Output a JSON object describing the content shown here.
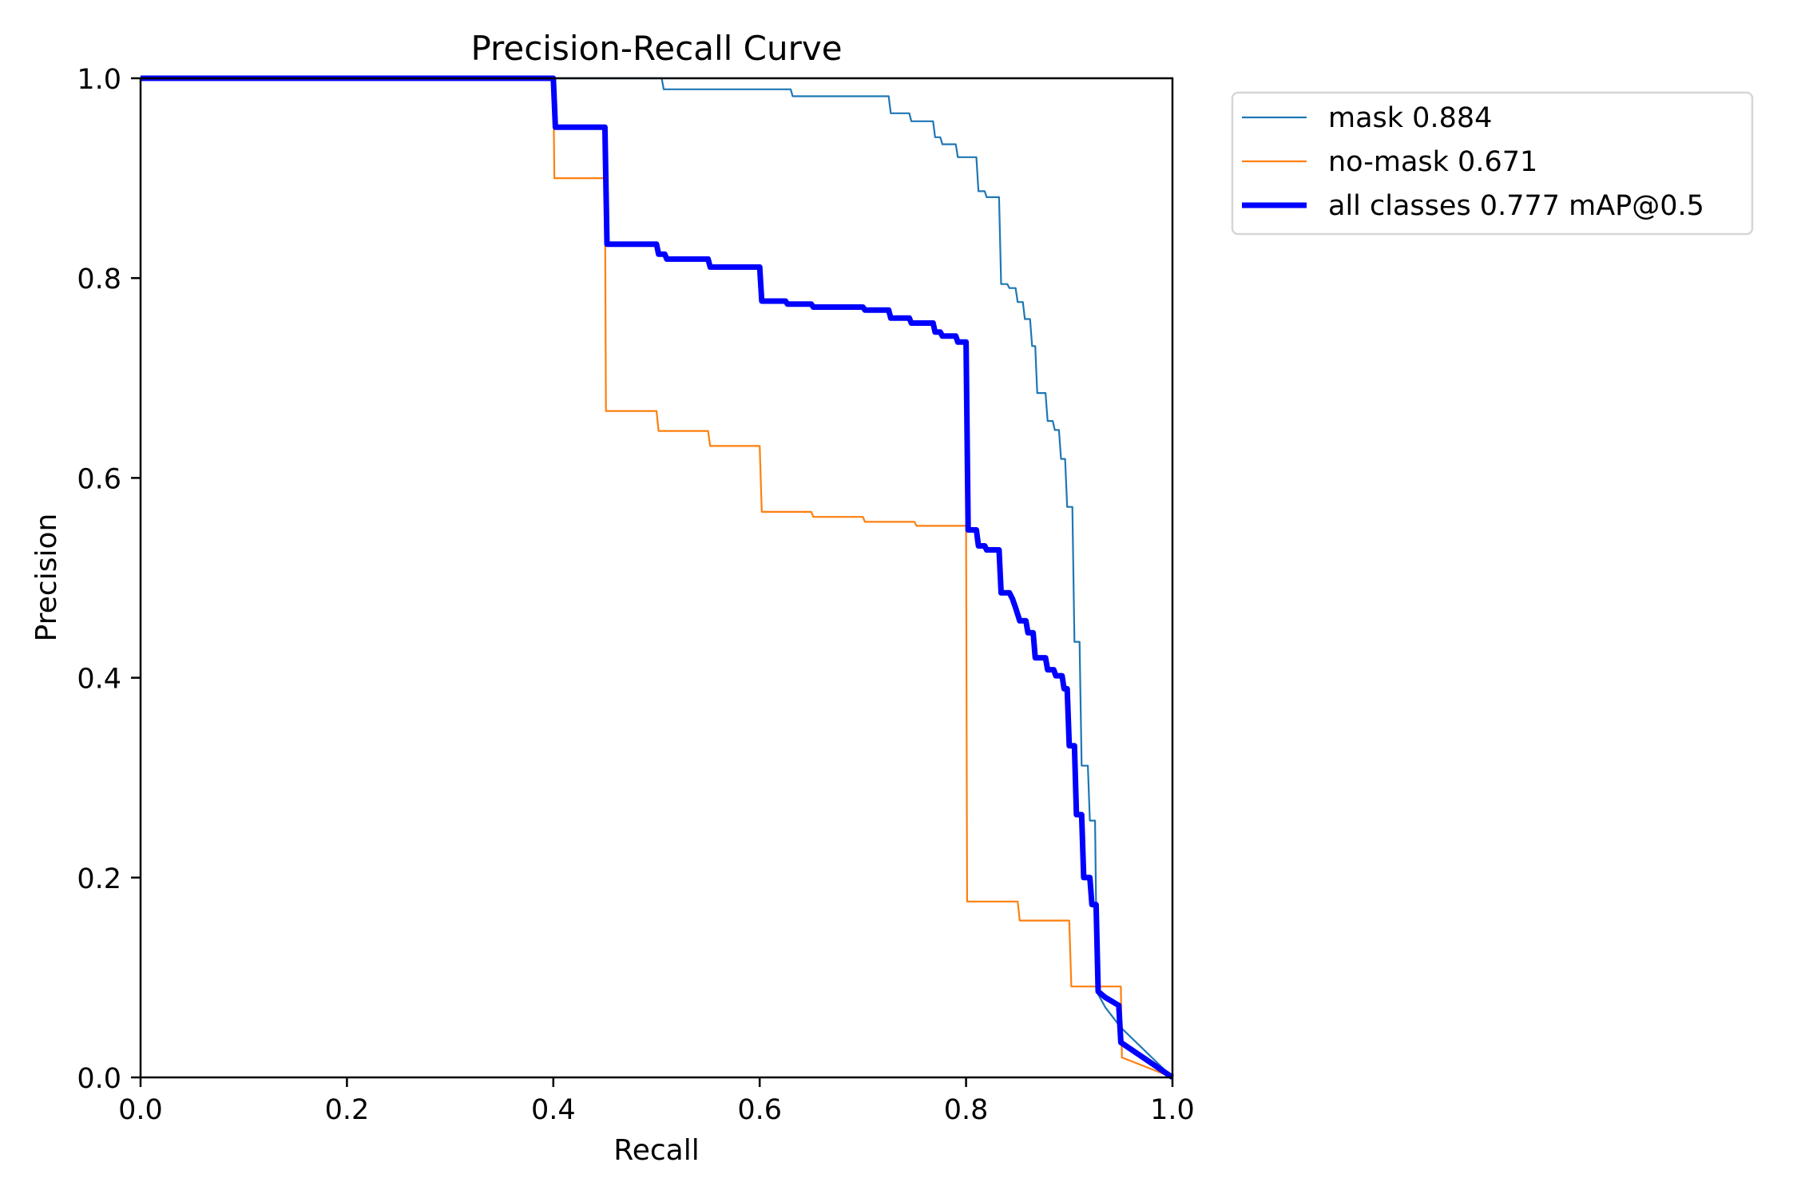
{
  "chart_data": {
    "type": "line",
    "title": "Precision-Recall Curve",
    "xlabel": "Recall",
    "ylabel": "Precision",
    "xlim": [
      0,
      1
    ],
    "ylim": [
      0,
      1
    ],
    "xticks": [
      "0.0",
      "0.2",
      "0.4",
      "0.6",
      "0.8",
      "1.0"
    ],
    "yticks": [
      "0.0",
      "0.2",
      "0.4",
      "0.6",
      "0.8",
      "1.0"
    ],
    "grid": false,
    "legend_placement": "outside-top-right",
    "series": [
      {
        "name": "mask 0.884",
        "color": "#1f77b4",
        "points": [
          [
            0,
            1
          ],
          [
            0.505,
            1
          ],
          [
            0.507,
            0.989
          ],
          [
            0.63,
            0.989
          ],
          [
            0.632,
            0.982
          ],
          [
            0.725,
            0.982
          ],
          [
            0.727,
            0.965
          ],
          [
            0.745,
            0.965
          ],
          [
            0.747,
            0.957
          ],
          [
            0.768,
            0.957
          ],
          [
            0.77,
            0.941
          ],
          [
            0.775,
            0.941
          ],
          [
            0.777,
            0.934
          ],
          [
            0.79,
            0.934
          ],
          [
            0.792,
            0.921
          ],
          [
            0.81,
            0.921
          ],
          [
            0.812,
            0.887
          ],
          [
            0.818,
            0.887
          ],
          [
            0.82,
            0.881
          ],
          [
            0.832,
            0.881
          ],
          [
            0.834,
            0.794
          ],
          [
            0.84,
            0.794
          ],
          [
            0.842,
            0.79
          ],
          [
            0.848,
            0.79
          ],
          [
            0.85,
            0.776
          ],
          [
            0.855,
            0.776
          ],
          [
            0.857,
            0.759
          ],
          [
            0.862,
            0.759
          ],
          [
            0.864,
            0.732
          ],
          [
            0.867,
            0.732
          ],
          [
            0.869,
            0.685
          ],
          [
            0.877,
            0.685
          ],
          [
            0.879,
            0.657
          ],
          [
            0.884,
            0.657
          ],
          [
            0.886,
            0.648
          ],
          [
            0.89,
            0.648
          ],
          [
            0.892,
            0.619
          ],
          [
            0.896,
            0.619
          ],
          [
            0.898,
            0.571
          ],
          [
            0.903,
            0.571
          ],
          [
            0.905,
            0.436
          ],
          [
            0.91,
            0.436
          ],
          [
            0.912,
            0.312
          ],
          [
            0.918,
            0.312
          ],
          [
            0.92,
            0.257
          ],
          [
            0.925,
            0.257
          ],
          [
            0.927,
            0.085
          ],
          [
            0.935,
            0.07
          ],
          [
            0.95,
            0.05
          ],
          [
            1,
            0
          ]
        ]
      },
      {
        "name": "no-mask 0.671",
        "color": "#ff7f0e",
        "points": [
          [
            0,
            1
          ],
          [
            0.4,
            1
          ],
          [
            0.401,
            0.9
          ],
          [
            0.45,
            0.9
          ],
          [
            0.451,
            0.667
          ],
          [
            0.5,
            0.667
          ],
          [
            0.502,
            0.647
          ],
          [
            0.55,
            0.647
          ],
          [
            0.552,
            0.632
          ],
          [
            0.6,
            0.632
          ],
          [
            0.602,
            0.566
          ],
          [
            0.65,
            0.566
          ],
          [
            0.652,
            0.561
          ],
          [
            0.7,
            0.561
          ],
          [
            0.702,
            0.556
          ],
          [
            0.75,
            0.556
          ],
          [
            0.752,
            0.552
          ],
          [
            0.8,
            0.552
          ],
          [
            0.801,
            0.176
          ],
          [
            0.85,
            0.176
          ],
          [
            0.852,
            0.157
          ],
          [
            0.9,
            0.157
          ],
          [
            0.902,
            0.091
          ],
          [
            0.95,
            0.091
          ],
          [
            0.951,
            0.02
          ],
          [
            1,
            0
          ]
        ]
      },
      {
        "name": "all classes 0.777 mAP@0.5",
        "color": "#0000ff",
        "points": [
          [
            0,
            1
          ],
          [
            0.4,
            1
          ],
          [
            0.402,
            0.951
          ],
          [
            0.45,
            0.951
          ],
          [
            0.452,
            0.834
          ],
          [
            0.5,
            0.834
          ],
          [
            0.502,
            0.824
          ],
          [
            0.508,
            0.824
          ],
          [
            0.51,
            0.819
          ],
          [
            0.55,
            0.819
          ],
          [
            0.552,
            0.811
          ],
          [
            0.6,
            0.811
          ],
          [
            0.602,
            0.777
          ],
          [
            0.625,
            0.777
          ],
          [
            0.627,
            0.774
          ],
          [
            0.65,
            0.774
          ],
          [
            0.652,
            0.771
          ],
          [
            0.7,
            0.771
          ],
          [
            0.702,
            0.768
          ],
          [
            0.725,
            0.768
          ],
          [
            0.727,
            0.76
          ],
          [
            0.745,
            0.76
          ],
          [
            0.747,
            0.755
          ],
          [
            0.768,
            0.755
          ],
          [
            0.77,
            0.746
          ],
          [
            0.775,
            0.746
          ],
          [
            0.777,
            0.742
          ],
          [
            0.79,
            0.742
          ],
          [
            0.792,
            0.736
          ],
          [
            0.8,
            0.736
          ],
          [
            0.802,
            0.548
          ],
          [
            0.81,
            0.548
          ],
          [
            0.812,
            0.532
          ],
          [
            0.818,
            0.532
          ],
          [
            0.82,
            0.528
          ],
          [
            0.832,
            0.528
          ],
          [
            0.834,
            0.485
          ],
          [
            0.842,
            0.485
          ],
          [
            0.845,
            0.479
          ],
          [
            0.848,
            0.47
          ],
          [
            0.852,
            0.457
          ],
          [
            0.858,
            0.457
          ],
          [
            0.86,
            0.445
          ],
          [
            0.865,
            0.445
          ],
          [
            0.867,
            0.42
          ],
          [
            0.877,
            0.42
          ],
          [
            0.879,
            0.408
          ],
          [
            0.885,
            0.408
          ],
          [
            0.887,
            0.402
          ],
          [
            0.893,
            0.402
          ],
          [
            0.895,
            0.389
          ],
          [
            0.898,
            0.389
          ],
          [
            0.9,
            0.332
          ],
          [
            0.905,
            0.332
          ],
          [
            0.907,
            0.263
          ],
          [
            0.912,
            0.263
          ],
          [
            0.914,
            0.2
          ],
          [
            0.92,
            0.2
          ],
          [
            0.922,
            0.173
          ],
          [
            0.926,
            0.173
          ],
          [
            0.928,
            0.086
          ],
          [
            0.935,
            0.08
          ],
          [
            0.948,
            0.072
          ],
          [
            0.95,
            0.035
          ],
          [
            1,
            0
          ]
        ]
      }
    ]
  }
}
